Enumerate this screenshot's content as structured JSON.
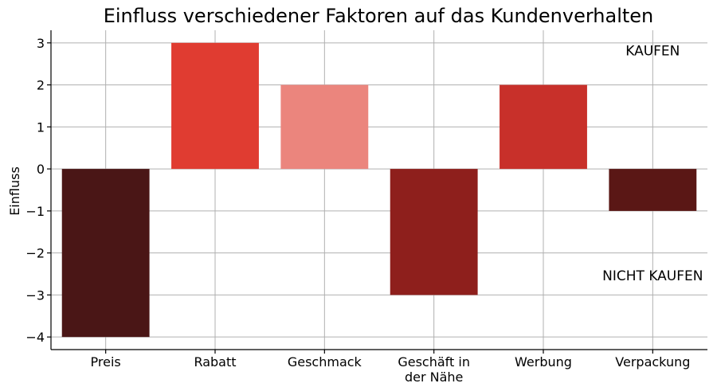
{
  "chart_data": {
    "type": "bar",
    "title": "Einfluss verschiedener Faktoren auf das Kundenverhalten",
    "xlabel": "",
    "ylabel": "Einfluss",
    "categories": [
      "Preis",
      "Rabatt",
      "Geschmack",
      "Geschäft in der Nähe",
      "Werbung",
      "Verpackung"
    ],
    "category_lines": [
      [
        "Preis"
      ],
      [
        "Rabatt"
      ],
      [
        "Geschmack"
      ],
      [
        "Geschäft in",
        "der Nähe"
      ],
      [
        "Werbung"
      ],
      [
        "Verpackung"
      ]
    ],
    "values": [
      -4,
      3,
      2,
      -3,
      2,
      -1
    ],
    "colors": [
      "#4a1616",
      "#e03c31",
      "#eb857d",
      "#8e1f1c",
      "#c8302a",
      "#5a1715"
    ],
    "ylim": [
      -4.3,
      3.3
    ],
    "yticks": [
      -4,
      -3,
      -2,
      -1,
      0,
      1,
      2,
      3
    ],
    "ytick_labels": [
      "−4",
      "−3",
      "−2",
      "−1",
      "0",
      "1",
      "2",
      "3"
    ],
    "grid": true,
    "annotations": [
      {
        "text": "KAUFEN",
        "x": 5.5,
        "y": 2.7
      },
      {
        "text": "NICHT KAUFEN",
        "x": 5.5,
        "y": -2.65
      }
    ]
  }
}
